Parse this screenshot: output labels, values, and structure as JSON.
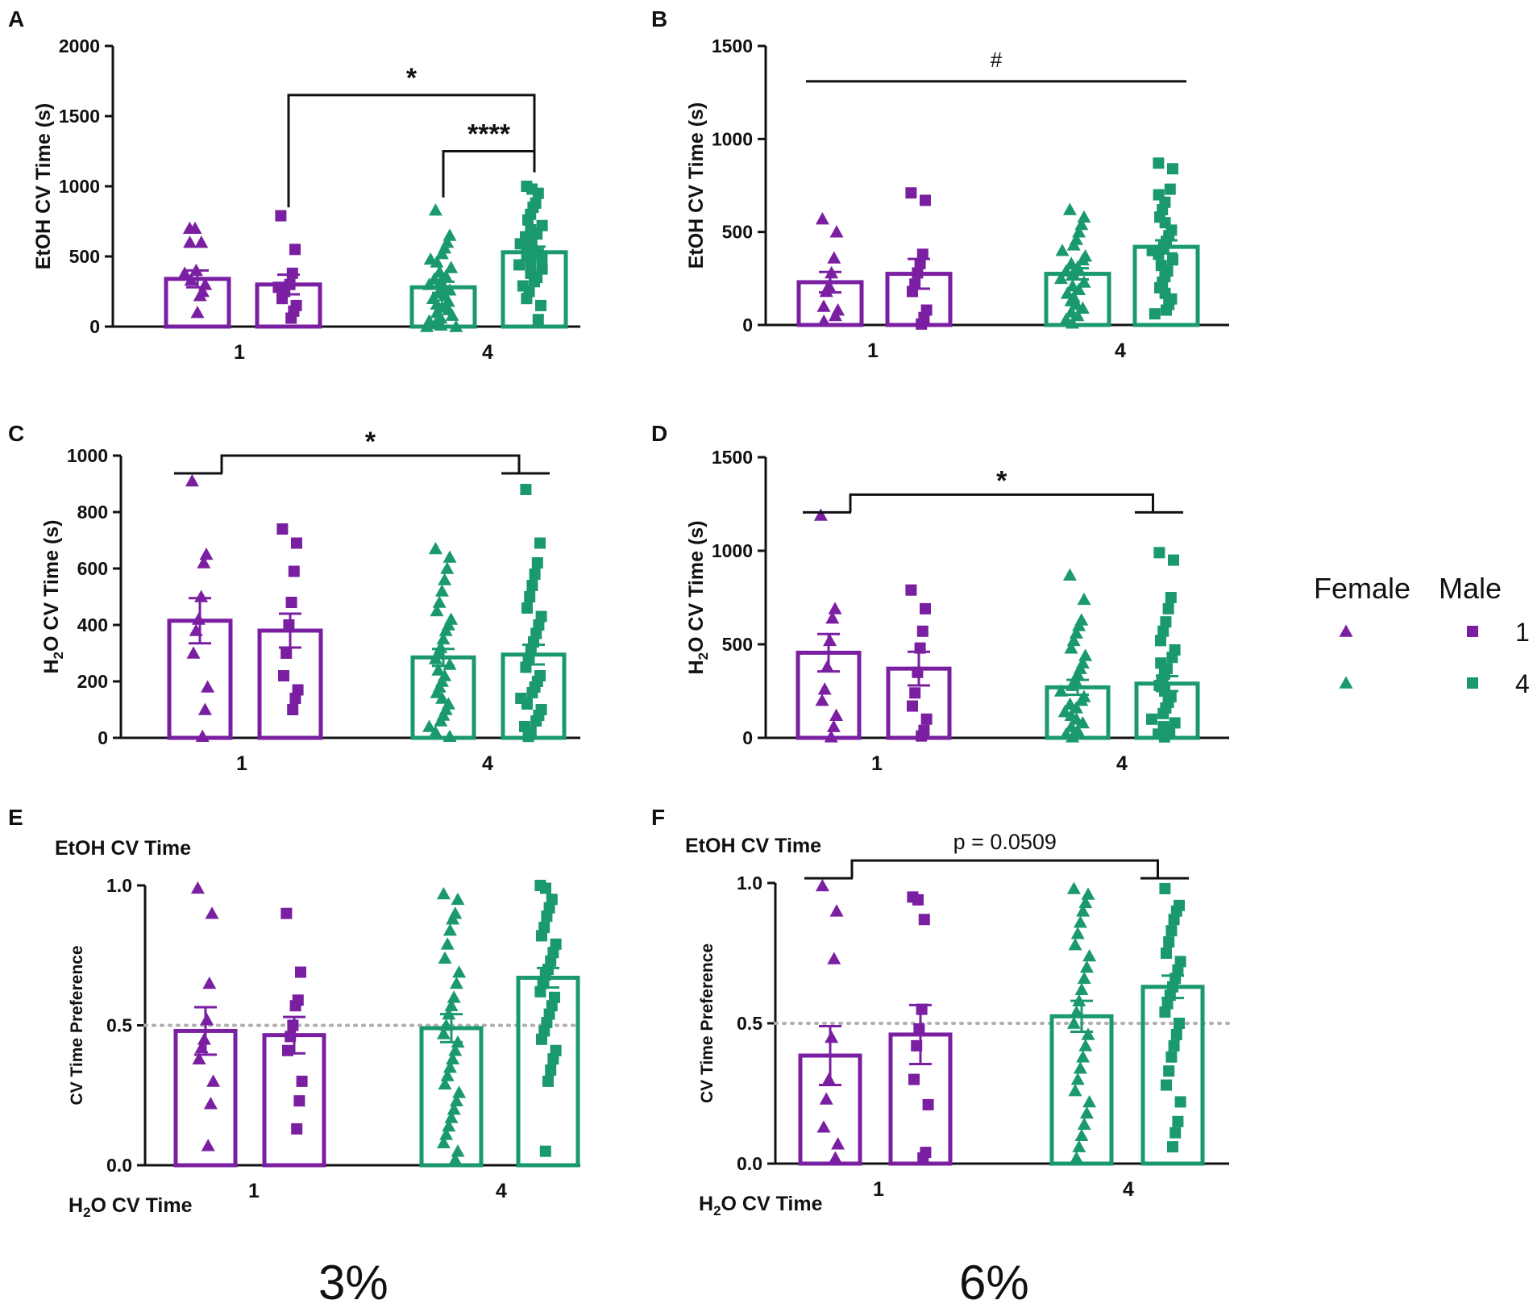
{
  "colors": {
    "female_male_1": "#7b1fa2",
    "female_male_4": "#1a9a6c",
    "axis": "#111111",
    "reference": "#b0b0b0"
  },
  "legend": {
    "header_female": "Female",
    "header_male": "Male",
    "row_1": "1",
    "row_4": "4"
  },
  "column_labels": {
    "left": "3%",
    "right": "6%"
  },
  "chart_data": [
    {
      "panel": "A",
      "type": "bar",
      "ylabel": "EtOH CV Time (s)",
      "ylim": [
        0,
        2000
      ],
      "yticks": [
        0,
        500,
        1000,
        1500,
        2000
      ],
      "ytick_labels": [
        "0",
        "500",
        "1000",
        "1500",
        "2000"
      ],
      "categories": [
        "1",
        "4"
      ],
      "series": [
        {
          "name": "Female 1",
          "group": "1",
          "sex": "female",
          "mean": 340,
          "sem": 60,
          "points": [
            700,
            700,
            600,
            600,
            400,
            380,
            330,
            300,
            250,
            220,
            100
          ]
        },
        {
          "name": "Male 1",
          "group": "1",
          "sex": "male",
          "mean": 300,
          "sem": 70,
          "points": [
            790,
            550,
            380,
            300,
            280,
            250,
            200,
            150,
            110,
            60
          ]
        },
        {
          "name": "Female 4",
          "group": "4",
          "sex": "female",
          "mean": 280,
          "sem": 40,
          "points": [
            830,
            650,
            600,
            560,
            520,
            480,
            460,
            420,
            390,
            360,
            340,
            320,
            300,
            280,
            260,
            240,
            220,
            200,
            180,
            160,
            140,
            120,
            100,
            80,
            60,
            40,
            20,
            10,
            0,
            0
          ]
        },
        {
          "name": "Male 4",
          "group": "4",
          "sex": "male",
          "mean": 530,
          "sem": 40,
          "points": [
            1000,
            980,
            950,
            880,
            850,
            800,
            760,
            720,
            690,
            660,
            640,
            610,
            590,
            560,
            540,
            520,
            500,
            480,
            460,
            440,
            410,
            380,
            350,
            320,
            290,
            250,
            200,
            150,
            50
          ]
        }
      ],
      "annotations": [
        {
          "text": "*",
          "kind": "bracket",
          "from": "Male 1",
          "to": "Male 4",
          "at": 1650
        },
        {
          "text": "****",
          "kind": "bracket",
          "from": "Female 4",
          "to": "Male 4",
          "at": 1250
        }
      ]
    },
    {
      "panel": "B",
      "type": "bar",
      "ylabel": "EtOH CV Time (s)",
      "ylim": [
        0,
        1500
      ],
      "yticks": [
        0,
        500,
        1000,
        1500
      ],
      "ytick_labels": [
        "0",
        "500",
        "1000",
        "1500"
      ],
      "categories": [
        "1",
        "4"
      ],
      "series": [
        {
          "name": "Female 1",
          "group": "1",
          "sex": "female",
          "mean": 230,
          "sem": 55,
          "points": [
            570,
            500,
            360,
            280,
            210,
            180,
            100,
            80,
            50,
            20
          ]
        },
        {
          "name": "Male 1",
          "group": "1",
          "sex": "male",
          "mean": 275,
          "sem": 80,
          "points": [
            710,
            670,
            380,
            330,
            280,
            220,
            180,
            80,
            40,
            5
          ]
        },
        {
          "name": "Female 4",
          "group": "4",
          "sex": "female",
          "mean": 275,
          "sem": 30,
          "points": [
            620,
            580,
            540,
            500,
            460,
            430,
            400,
            370,
            350,
            330,
            310,
            290,
            270,
            250,
            230,
            210,
            190,
            170,
            150,
            130,
            110,
            90,
            70,
            50,
            30,
            10
          ]
        },
        {
          "name": "Male 4",
          "group": "4",
          "sex": "male",
          "mean": 420,
          "sem": 35,
          "points": [
            870,
            840,
            730,
            700,
            660,
            620,
            580,
            550,
            510,
            480,
            450,
            420,
            400,
            380,
            350,
            320,
            290,
            260,
            230,
            200,
            170,
            140,
            110,
            80,
            60
          ]
        }
      ],
      "annotations": [
        {
          "text": "#",
          "kind": "line",
          "from": "Female 1",
          "to": "Male 4",
          "at": 1310
        }
      ]
    },
    {
      "panel": "C",
      "type": "bar",
      "ylabel": "H2O CV Time (s)",
      "ylabel_main": "H",
      "ylabel_sub": "2",
      "ylabel_rest": "O CV Time (s)",
      "ylim": [
        0,
        1000
      ],
      "yticks": [
        0,
        200,
        400,
        600,
        800,
        1000
      ],
      "ytick_labels": [
        "0",
        "200",
        "400",
        "600",
        "800",
        "1000"
      ],
      "categories": [
        "1",
        "4"
      ],
      "series": [
        {
          "name": "Female 1",
          "group": "1",
          "sex": "female",
          "mean": 415,
          "sem": 80,
          "points": [
            910,
            650,
            620,
            500,
            420,
            380,
            300,
            180,
            100,
            5
          ]
        },
        {
          "name": "Male 1",
          "group": "1",
          "sex": "male",
          "mean": 380,
          "sem": 60,
          "points": [
            740,
            690,
            590,
            480,
            400,
            300,
            220,
            170,
            140,
            100
          ]
        },
        {
          "name": "Female 4",
          "group": "4",
          "sex": "female",
          "mean": 285,
          "sem": 30,
          "points": [
            670,
            640,
            600,
            560,
            520,
            480,
            450,
            420,
            400,
            380,
            350,
            320,
            300,
            280,
            260,
            240,
            220,
            200,
            180,
            160,
            140,
            120,
            100,
            80,
            60,
            40,
            20,
            5
          ]
        },
        {
          "name": "Male 4",
          "group": "4",
          "sex": "male",
          "mean": 295,
          "sem": 35,
          "points": [
            880,
            690,
            620,
            580,
            540,
            500,
            460,
            430,
            400,
            370,
            340,
            310,
            280,
            250,
            220,
            200,
            180,
            160,
            140,
            120,
            100,
            80,
            60,
            40,
            20,
            5
          ]
        }
      ],
      "annotations": [
        {
          "text": "*",
          "kind": "group-bracket",
          "from": "1",
          "to": "4",
          "at": 1000
        }
      ]
    },
    {
      "panel": "D",
      "type": "bar",
      "ylabel": "H2O CV Time (s)",
      "ylabel_main": "H",
      "ylabel_sub": "2",
      "ylabel_rest": "O CV Time (s)",
      "ylim": [
        0,
        1500
      ],
      "yticks": [
        0,
        500,
        1000,
        1500
      ],
      "ytick_labels": [
        "0",
        "500",
        "1000",
        "1500"
      ],
      "categories": [
        "1",
        "4"
      ],
      "series": [
        {
          "name": "Female 1",
          "group": "1",
          "sex": "female",
          "mean": 455,
          "sem": 100,
          "points": [
            1190,
            690,
            640,
            520,
            380,
            260,
            200,
            120,
            60,
            5
          ]
        },
        {
          "name": "Male 1",
          "group": "1",
          "sex": "male",
          "mean": 370,
          "sem": 90,
          "points": [
            790,
            690,
            570,
            480,
            350,
            240,
            170,
            100,
            40,
            10
          ]
        },
        {
          "name": "Female 4",
          "group": "4",
          "sex": "female",
          "mean": 270,
          "sem": 40,
          "points": [
            870,
            740,
            630,
            600,
            560,
            520,
            480,
            440,
            400,
            370,
            340,
            310,
            280,
            250,
            220,
            200,
            180,
            160,
            140,
            120,
            100,
            80,
            60,
            40,
            20,
            5
          ]
        },
        {
          "name": "Male 4",
          "group": "4",
          "sex": "male",
          "mean": 290,
          "sem": 40,
          "points": [
            990,
            950,
            750,
            690,
            620,
            570,
            520,
            470,
            430,
            400,
            370,
            340,
            310,
            280,
            250,
            220,
            190,
            160,
            130,
            100,
            80,
            60,
            40,
            20,
            5
          ]
        }
      ],
      "annotations": [
        {
          "text": "*",
          "kind": "group-bracket",
          "from": "1",
          "to": "4",
          "at": 1300
        }
      ]
    },
    {
      "panel": "E",
      "type": "bar",
      "ylabel": "CV Time Preference",
      "top_label": "EtOH CV Time",
      "bottom_label": "H2O CV Time",
      "bottom_main": "H",
      "bottom_sub": "2",
      "bottom_rest": "O CV Time",
      "ylim": [
        0,
        1
      ],
      "yticks": [
        0,
        0.5,
        1
      ],
      "ytick_labels": [
        "0.0",
        "0.5",
        "1.0"
      ],
      "reference_line": 0.5,
      "categories": [
        "1",
        "4"
      ],
      "series": [
        {
          "name": "Female 1",
          "group": "1",
          "sex": "female",
          "mean": 0.48,
          "sem": 0.085,
          "points": [
            0.99,
            0.9,
            0.65,
            0.52,
            0.45,
            0.42,
            0.38,
            0.3,
            0.22,
            0.07
          ]
        },
        {
          "name": "Male 1",
          "group": "1",
          "sex": "male",
          "mean": 0.465,
          "sem": 0.065,
          "points": [
            0.9,
            0.69,
            0.59,
            0.57,
            0.5,
            0.46,
            0.41,
            0.3,
            0.23,
            0.13
          ]
        },
        {
          "name": "Female 4",
          "group": "4",
          "sex": "female",
          "mean": 0.49,
          "sem": 0.05,
          "points": [
            0.97,
            0.95,
            0.9,
            0.88,
            0.84,
            0.79,
            0.74,
            0.69,
            0.65,
            0.6,
            0.57,
            0.54,
            0.5,
            0.47,
            0.44,
            0.41,
            0.38,
            0.35,
            0.32,
            0.29,
            0.26,
            0.23,
            0.2,
            0.17,
            0.14,
            0.11,
            0.08,
            0.05,
            0.02
          ]
        },
        {
          "name": "Male 4",
          "group": "4",
          "sex": "male",
          "mean": 0.67,
          "sem": 0.035,
          "points": [
            1.0,
            0.99,
            0.95,
            0.92,
            0.89,
            0.85,
            0.82,
            0.79,
            0.76,
            0.73,
            0.7,
            0.68,
            0.65,
            0.62,
            0.6,
            0.57,
            0.54,
            0.51,
            0.48,
            0.45,
            0.41,
            0.38,
            0.34,
            0.3,
            0.05
          ]
        }
      ],
      "annotations": []
    },
    {
      "panel": "F",
      "type": "bar",
      "ylabel": "CV Time Preference",
      "top_label": "EtOH CV Time",
      "bottom_label": "H2O CV Time",
      "bottom_main": "H",
      "bottom_sub": "2",
      "bottom_rest": "O CV Time",
      "ylim": [
        0,
        1
      ],
      "yticks": [
        0,
        0.5,
        1
      ],
      "ytick_labels": [
        "0.0",
        "0.5",
        "1.0"
      ],
      "reference_line": 0.5,
      "categories": [
        "1",
        "4"
      ],
      "series": [
        {
          "name": "Female 1",
          "group": "1",
          "sex": "female",
          "mean": 0.385,
          "sem": 0.105,
          "points": [
            0.99,
            0.9,
            0.73,
            0.45,
            0.3,
            0.23,
            0.13,
            0.07,
            0.02
          ]
        },
        {
          "name": "Male 1",
          "group": "1",
          "sex": "male",
          "mean": 0.46,
          "sem": 0.105,
          "points": [
            0.95,
            0.94,
            0.87,
            0.55,
            0.48,
            0.42,
            0.3,
            0.21,
            0.04,
            0.02
          ]
        },
        {
          "name": "Female 4",
          "group": "4",
          "sex": "female",
          "mean": 0.525,
          "sem": 0.055,
          "points": [
            0.98,
            0.96,
            0.93,
            0.9,
            0.86,
            0.82,
            0.78,
            0.74,
            0.7,
            0.66,
            0.62,
            0.58,
            0.54,
            0.5,
            0.46,
            0.42,
            0.38,
            0.34,
            0.3,
            0.26,
            0.22,
            0.18,
            0.14,
            0.1,
            0.06,
            0.02
          ]
        },
        {
          "name": "Male 4",
          "group": "4",
          "sex": "male",
          "mean": 0.63,
          "sem": 0.04,
          "points": [
            0.98,
            0.92,
            0.9,
            0.87,
            0.83,
            0.79,
            0.75,
            0.72,
            0.69,
            0.66,
            0.63,
            0.6,
            0.57,
            0.54,
            0.5,
            0.46,
            0.42,
            0.38,
            0.33,
            0.28,
            0.22,
            0.15,
            0.11,
            0.06
          ]
        }
      ],
      "annotations": [
        {
          "text": "p = 0.0509",
          "kind": "group-bracket",
          "from": "1",
          "to": "4",
          "at": 1.08
        }
      ]
    }
  ]
}
